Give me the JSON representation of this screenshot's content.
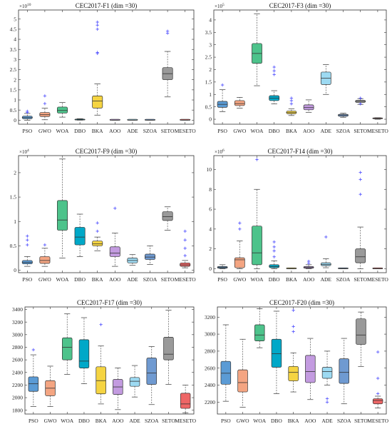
{
  "chart_data": [
    {
      "type": "boxplot",
      "title": "CEC2017-F1 (dim =30)",
      "exponent": "10",
      "ylim": [
        -0.2,
        5.45
      ],
      "yticks": [
        0,
        0.5,
        1,
        1.5,
        2,
        2.5,
        3,
        3.5,
        4,
        4.5,
        5
      ],
      "categories": [
        "PSO",
        "GWO",
        "WOA",
        "DBO",
        "BKA",
        "AOO",
        "ADE",
        "SZOA",
        "SETO",
        "MESETO"
      ],
      "colors": [
        "#5b9bd5",
        "#f4a582",
        "#4dc38b",
        "#00a8c8",
        "#f5d442",
        "#c39be0",
        "#9ddaf2",
        "#6f9ad1",
        "#9a9a9a",
        "#ee6666"
      ],
      "boxes": [
        {
          "min": 0.0,
          "q1": 0.07,
          "median": 0.13,
          "q3": 0.2,
          "max": 0.33,
          "outliers": [
            0.38,
            0.44
          ]
        },
        {
          "min": 0.02,
          "q1": 0.18,
          "median": 0.27,
          "q3": 0.38,
          "max": 0.6,
          "outliers": [
            0.82,
            1.2
          ]
        },
        {
          "min": 0.15,
          "q1": 0.35,
          "median": 0.48,
          "q3": 0.65,
          "max": 0.88,
          "outliers": []
        },
        {
          "min": 0.0,
          "q1": 0.01,
          "median": 0.02,
          "q3": 0.04,
          "max": 0.07,
          "outliers": []
        },
        {
          "min": 0.25,
          "q1": 0.6,
          "median": 0.95,
          "q3": 1.2,
          "max": 1.8,
          "outliers": [
            3.3,
            3.35,
            4.5,
            4.7,
            4.85
          ]
        },
        {
          "min": 0.0,
          "q1": 0.0,
          "median": 0.0,
          "q3": 0.01,
          "max": 0.02,
          "outliers": []
        },
        {
          "min": 0.0,
          "q1": 0.0,
          "median": 0.0,
          "q3": 0.0,
          "max": 0.01,
          "outliers": []
        },
        {
          "min": 0.0,
          "q1": 0.0,
          "median": 0.0,
          "q3": 0.01,
          "max": 0.02,
          "outliers": []
        },
        {
          "min": 1.15,
          "q1": 2.0,
          "median": 2.3,
          "q3": 2.6,
          "max": 3.4,
          "outliers": [
            4.3,
            4.4
          ]
        },
        {
          "min": 0.0,
          "q1": 0.0,
          "median": 0.0,
          "q3": 0.0,
          "max": 0.01,
          "outliers": []
        }
      ]
    },
    {
      "type": "boxplot",
      "title": "CEC2017-F3 (dim =30)",
      "exponent": "5",
      "ylim": [
        -0.2,
        4.4
      ],
      "yticks": [
        0,
        0.5,
        1,
        1.5,
        2,
        2.5,
        3,
        3.5,
        4
      ],
      "categories": [
        "PSO",
        "GWO",
        "WOA",
        "DBO",
        "BKA",
        "AOO",
        "ADE",
        "SZOA",
        "SETO",
        "MESETO"
      ],
      "colors": [
        "#5b9bd5",
        "#f4a582",
        "#4dc38b",
        "#00a8c8",
        "#f5d442",
        "#c39be0",
        "#9ddaf2",
        "#6f9ad1",
        "#9a9a9a",
        "#ee6666"
      ],
      "boxes": [
        {
          "min": 0.3,
          "q1": 0.48,
          "median": 0.6,
          "q3": 0.72,
          "max": 1.2,
          "outliers": [
            1.38
          ]
        },
        {
          "min": 0.45,
          "q1": 0.55,
          "median": 0.63,
          "q3": 0.75,
          "max": 0.88,
          "outliers": []
        },
        {
          "min": 1.35,
          "q1": 2.25,
          "median": 2.65,
          "q3": 3.05,
          "max": 4.25,
          "outliers": []
        },
        {
          "min": 0.62,
          "q1": 0.75,
          "median": 0.85,
          "q3": 0.95,
          "max": 1.15,
          "outliers": [
            1.8,
            1.95,
            2.1
          ]
        },
        {
          "min": 0.15,
          "q1": 0.22,
          "median": 0.27,
          "q3": 0.33,
          "max": 0.42,
          "outliers": [
            0.62,
            0.75,
            0.85
          ]
        },
        {
          "min": 0.28,
          "q1": 0.38,
          "median": 0.47,
          "q3": 0.58,
          "max": 0.78,
          "outliers": []
        },
        {
          "min": 1.0,
          "q1": 1.4,
          "median": 1.65,
          "q3": 1.9,
          "max": 2.2,
          "outliers": []
        },
        {
          "min": 0.08,
          "q1": 0.12,
          "median": 0.17,
          "q3": 0.2,
          "max": 0.24,
          "outliers": []
        },
        {
          "min": 0.6,
          "q1": 0.68,
          "median": 0.72,
          "q3": 0.76,
          "max": 0.83,
          "outliers": [
            0.62,
            0.85
          ]
        },
        {
          "min": 0.0,
          "q1": 0.02,
          "median": 0.03,
          "q3": 0.04,
          "max": 0.06,
          "outliers": []
        }
      ]
    },
    {
      "type": "boxplot",
      "title": "CEC2017-F9 (dim =30)",
      "exponent": "4",
      "ylim": [
        -0.05,
        2.35
      ],
      "yticks": [
        0,
        0.5,
        1,
        1.5,
        2
      ],
      "categories": [
        "PSO",
        "GWO",
        "WOA",
        "DBO",
        "BKA",
        "AOO",
        "ADE",
        "SZOA",
        "SETO",
        "MESETO"
      ],
      "colors": [
        "#5b9bd5",
        "#f4a582",
        "#4dc38b",
        "#00a8c8",
        "#f5d442",
        "#c39be0",
        "#9ddaf2",
        "#6f9ad1",
        "#9a9a9a",
        "#ee6666"
      ],
      "boxes": [
        {
          "min": 0.08,
          "q1": 0.13,
          "median": 0.16,
          "q3": 0.2,
          "max": 0.28,
          "outliers": [
            0.52,
            0.62,
            0.7
          ]
        },
        {
          "min": 0.08,
          "q1": 0.14,
          "median": 0.2,
          "q3": 0.28,
          "max": 0.45,
          "outliers": [
            0.52
          ]
        },
        {
          "min": 0.25,
          "q1": 0.82,
          "median": 1.03,
          "q3": 1.43,
          "max": 2.28,
          "outliers": []
        },
        {
          "min": 0.28,
          "q1": 0.52,
          "median": 0.68,
          "q3": 0.88,
          "max": 1.15,
          "outliers": []
        },
        {
          "min": 0.4,
          "q1": 0.5,
          "median": 0.54,
          "q3": 0.6,
          "max": 0.68,
          "outliers": [
            0.8,
            0.97
          ]
        },
        {
          "min": 0.08,
          "q1": 0.28,
          "median": 0.35,
          "q3": 0.48,
          "max": 0.76,
          "outliers": [
            1.27
          ]
        },
        {
          "min": 0.1,
          "q1": 0.15,
          "median": 0.2,
          "q3": 0.25,
          "max": 0.32,
          "outliers": []
        },
        {
          "min": 0.12,
          "q1": 0.22,
          "median": 0.27,
          "q3": 0.33,
          "max": 0.5,
          "outliers": []
        },
        {
          "min": 0.82,
          "q1": 1.02,
          "median": 1.1,
          "q3": 1.2,
          "max": 1.3,
          "outliers": []
        },
        {
          "min": 0.05,
          "q1": 0.08,
          "median": 0.11,
          "q3": 0.15,
          "max": 0.2,
          "outliers": [
            0.3,
            0.45,
            0.62,
            0.8
          ]
        }
      ]
    },
    {
      "type": "boxplot",
      "title": "CEC2017-F14 (dim =30)",
      "exponent": "6",
      "ylim": [
        -0.4,
        11.4
      ],
      "yticks": [
        0,
        2,
        4,
        6,
        8,
        10
      ],
      "categories": [
        "PSO",
        "GWO",
        "WOA",
        "DBO",
        "BKA",
        "AOO",
        "ADE",
        "SZOA",
        "SETO",
        "MESETO"
      ],
      "colors": [
        "#5b9bd5",
        "#f4a582",
        "#4dc38b",
        "#00a8c8",
        "#f5d442",
        "#c39be0",
        "#9ddaf2",
        "#6f9ad1",
        "#9a9a9a",
        "#ee6666"
      ],
      "boxes": [
        {
          "min": 0.0,
          "q1": 0.05,
          "median": 0.12,
          "q3": 0.22,
          "max": 0.4,
          "outliers": []
        },
        {
          "min": 0.0,
          "q1": 0.1,
          "median": 0.9,
          "q3": 1.1,
          "max": 2.8,
          "outliers": [
            4.0,
            4.6
          ]
        },
        {
          "min": 0.0,
          "q1": 0.4,
          "median": 1.6,
          "q3": 4.3,
          "max": 8.0,
          "outliers": [
            11.0
          ]
        },
        {
          "min": 0.0,
          "q1": 0.1,
          "median": 0.2,
          "q3": 0.4,
          "max": 0.8,
          "outliers": [
            1.2,
            1.8,
            2.2,
            2.7
          ]
        },
        {
          "min": 0.0,
          "q1": 0.0,
          "median": 0.01,
          "q3": 0.02,
          "max": 0.05,
          "outliers": []
        },
        {
          "min": 0.0,
          "q1": 0.05,
          "median": 0.12,
          "q3": 0.22,
          "max": 0.4,
          "outliers": [
            0.55,
            0.75
          ]
        },
        {
          "min": 0.1,
          "q1": 0.3,
          "median": 0.42,
          "q3": 0.6,
          "max": 1.0,
          "outliers": [
            3.2
          ]
        },
        {
          "min": 0.0,
          "q1": 0.0,
          "median": 0.01,
          "q3": 0.03,
          "max": 0.06,
          "outliers": []
        },
        {
          "min": 0.0,
          "q1": 0.6,
          "median": 1.2,
          "q3": 2.0,
          "max": 4.2,
          "outliers": [
            7.5,
            9.0,
            9.7
          ]
        },
        {
          "min": 0.0,
          "q1": 0.0,
          "median": 0.0,
          "q3": 0.01,
          "max": 0.02,
          "outliers": []
        }
      ]
    },
    {
      "type": "boxplot",
      "title": "CEC2017-F17 (dim =30)",
      "exponent": "",
      "ylim": [
        1740,
        3440
      ],
      "yticks": [
        1800,
        2000,
        2200,
        2400,
        2600,
        2800,
        3000,
        3200,
        3400
      ],
      "categories": [
        "PSO",
        "GWO",
        "WOA",
        "DBO",
        "BKA",
        "AOO",
        "ADE",
        "SZOA",
        "SETO",
        "MESETO"
      ],
      "colors": [
        "#5b9bd5",
        "#f4a582",
        "#4dc38b",
        "#00a8c8",
        "#f5d442",
        "#c39be0",
        "#9ddaf2",
        "#6f9ad1",
        "#9a9a9a",
        "#ee6666"
      ],
      "boxes": [
        {
          "min": 1860,
          "q1": 2100,
          "median": 2220,
          "q3": 2330,
          "max": 2680,
          "outliers": [
            2760
          ]
        },
        {
          "min": 1860,
          "q1": 2030,
          "median": 2150,
          "q3": 2270,
          "max": 2500,
          "outliers": []
        },
        {
          "min": 2370,
          "q1": 2600,
          "median": 2800,
          "q3": 2950,
          "max": 3330,
          "outliers": []
        },
        {
          "min": 2220,
          "q1": 2470,
          "median": 2580,
          "q3": 2920,
          "max": 3270,
          "outliers": []
        },
        {
          "min": 1900,
          "q1": 2060,
          "median": 2270,
          "q3": 2490,
          "max": 2820,
          "outliers": [
            3160
          ]
        },
        {
          "min": 1810,
          "q1": 2050,
          "median": 2170,
          "q3": 2290,
          "max": 2470,
          "outliers": []
        },
        {
          "min": 2010,
          "q1": 2180,
          "median": 2260,
          "q3": 2320,
          "max": 2510,
          "outliers": []
        },
        {
          "min": 1890,
          "q1": 2210,
          "median": 2390,
          "q3": 2630,
          "max": 2810,
          "outliers": []
        },
        {
          "min": 2210,
          "q1": 2600,
          "median": 2690,
          "q3": 2960,
          "max": 3390,
          "outliers": []
        },
        {
          "min": 1760,
          "q1": 1830,
          "median": 1900,
          "q3": 2070,
          "max": 2200,
          "outliers": []
        }
      ]
    },
    {
      "type": "boxplot",
      "title": "CEC2017-F20 (dim =30)",
      "exponent": "",
      "ylim": [
        2060,
        3320
      ],
      "yticks": [
        2200,
        2400,
        2600,
        2800,
        3000,
        3200
      ],
      "categories": [
        "PSO",
        "GWO",
        "WOA",
        "DBO",
        "BKA",
        "AOO",
        "ADE",
        "SZOA",
        "SETO",
        "MESETO"
      ],
      "colors": [
        "#5b9bd5",
        "#f4a582",
        "#4dc38b",
        "#00a8c8",
        "#f5d442",
        "#c39be0",
        "#9ddaf2",
        "#6f9ad1",
        "#9a9a9a",
        "#ee6666"
      ],
      "boxes": [
        {
          "min": 2210,
          "q1": 2410,
          "median": 2540,
          "q3": 2680,
          "max": 3110,
          "outliers": []
        },
        {
          "min": 2140,
          "q1": 2320,
          "median": 2430,
          "q3": 2580,
          "max": 2940,
          "outliers": []
        },
        {
          "min": 2840,
          "q1": 2920,
          "median": 2990,
          "q3": 3110,
          "max": 3300,
          "outliers": []
        },
        {
          "min": 2300,
          "q1": 2610,
          "median": 2770,
          "q3": 2940,
          "max": 3270,
          "outliers": []
        },
        {
          "min": 2320,
          "q1": 2450,
          "median": 2550,
          "q3": 2620,
          "max": 2780,
          "outliers": [
            3030,
            3090,
            3280
          ]
        },
        {
          "min": 2230,
          "q1": 2430,
          "median": 2560,
          "q3": 2750,
          "max": 2950,
          "outliers": []
        },
        {
          "min": 2400,
          "q1": 2480,
          "median": 2560,
          "q3": 2610,
          "max": 2800,
          "outliers": [
            2200,
            2240
          ]
        },
        {
          "min": 2180,
          "q1": 2420,
          "median": 2550,
          "q3": 2710,
          "max": 2950,
          "outliers": []
        },
        {
          "min": 2620,
          "q1": 2880,
          "median": 2990,
          "q3": 3180,
          "max": 3260,
          "outliers": []
        },
        {
          "min": 2130,
          "q1": 2180,
          "median": 2220,
          "q3": 2240,
          "max": 2270,
          "outliers": [
            2300,
            2480,
            2790
          ]
        }
      ]
    }
  ]
}
